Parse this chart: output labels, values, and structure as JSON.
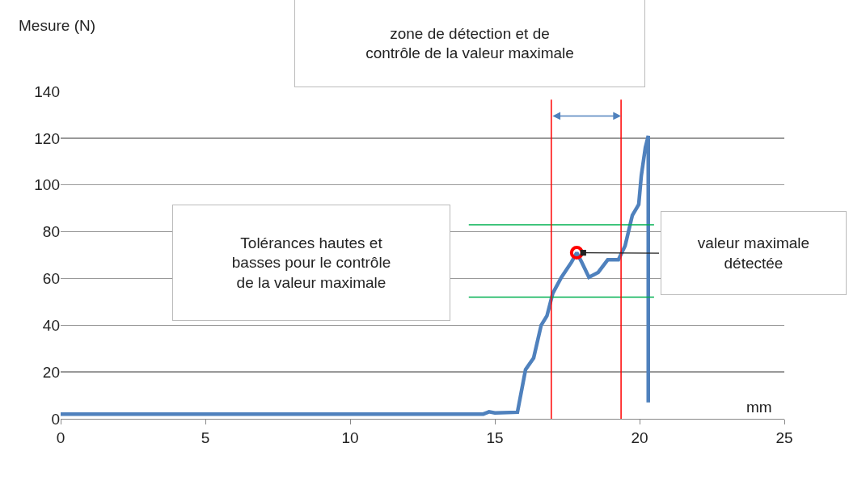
{
  "chart_data": {
    "type": "line",
    "xlabel": "mm",
    "ylabel": "Mesure (N)",
    "xlim": [
      0,
      25
    ],
    "xticks": [
      0,
      5,
      10,
      15,
      20,
      25
    ],
    "ylim": [
      0,
      140
    ],
    "yticks": [
      0,
      20,
      40,
      60,
      80,
      100,
      120,
      140
    ],
    "grid": "y",
    "line_style": "solid",
    "series": [
      {
        "color": "#4f81bd",
        "x": [
          0,
          5,
          10,
          14.6,
          14.8,
          15,
          15.78,
          16.06,
          16.34,
          16.6,
          16.8,
          17.0,
          17.3,
          17.65,
          17.83,
          18.0,
          18.25,
          18.57,
          18.9,
          19.27,
          19.5,
          19.75,
          19.97,
          20.06,
          20.2,
          20.3,
          20.3
        ],
        "values": [
          2,
          2,
          2,
          2,
          3,
          2.5,
          2.8,
          21,
          26,
          40,
          44,
          53.6,
          60.5,
          67,
          71,
          67,
          60.5,
          62.6,
          68,
          68,
          74,
          87,
          91.6,
          104,
          116,
          121,
          7
        ]
      },
      {
        "color": "#00b050",
        "x": [
          14.1,
          20.5
        ],
        "values": [
          83,
          83
        ]
      },
      {
        "color": "#00b050",
        "x": [
          14.1,
          20.5
        ],
        "values": [
          52,
          52
        ]
      },
      {
        "type": "scatter",
        "color": "#ff0000",
        "x": [
          17.83
        ],
        "values": [
          71
        ]
      }
    ],
    "ref_lines": [
      {
        "axis": "x",
        "value": 16.95,
        "color": "#ff0000"
      },
      {
        "axis": "x",
        "value": 19.36,
        "color": "#ff0000"
      }
    ],
    "annotations": [
      "zone de détection et de\ncontrôle de la valeur maximale",
      "Tolérances hautes et\nbasses pour le contrôle\nde la valeur maximale",
      "valeur maximale\ndétectée"
    ]
  }
}
